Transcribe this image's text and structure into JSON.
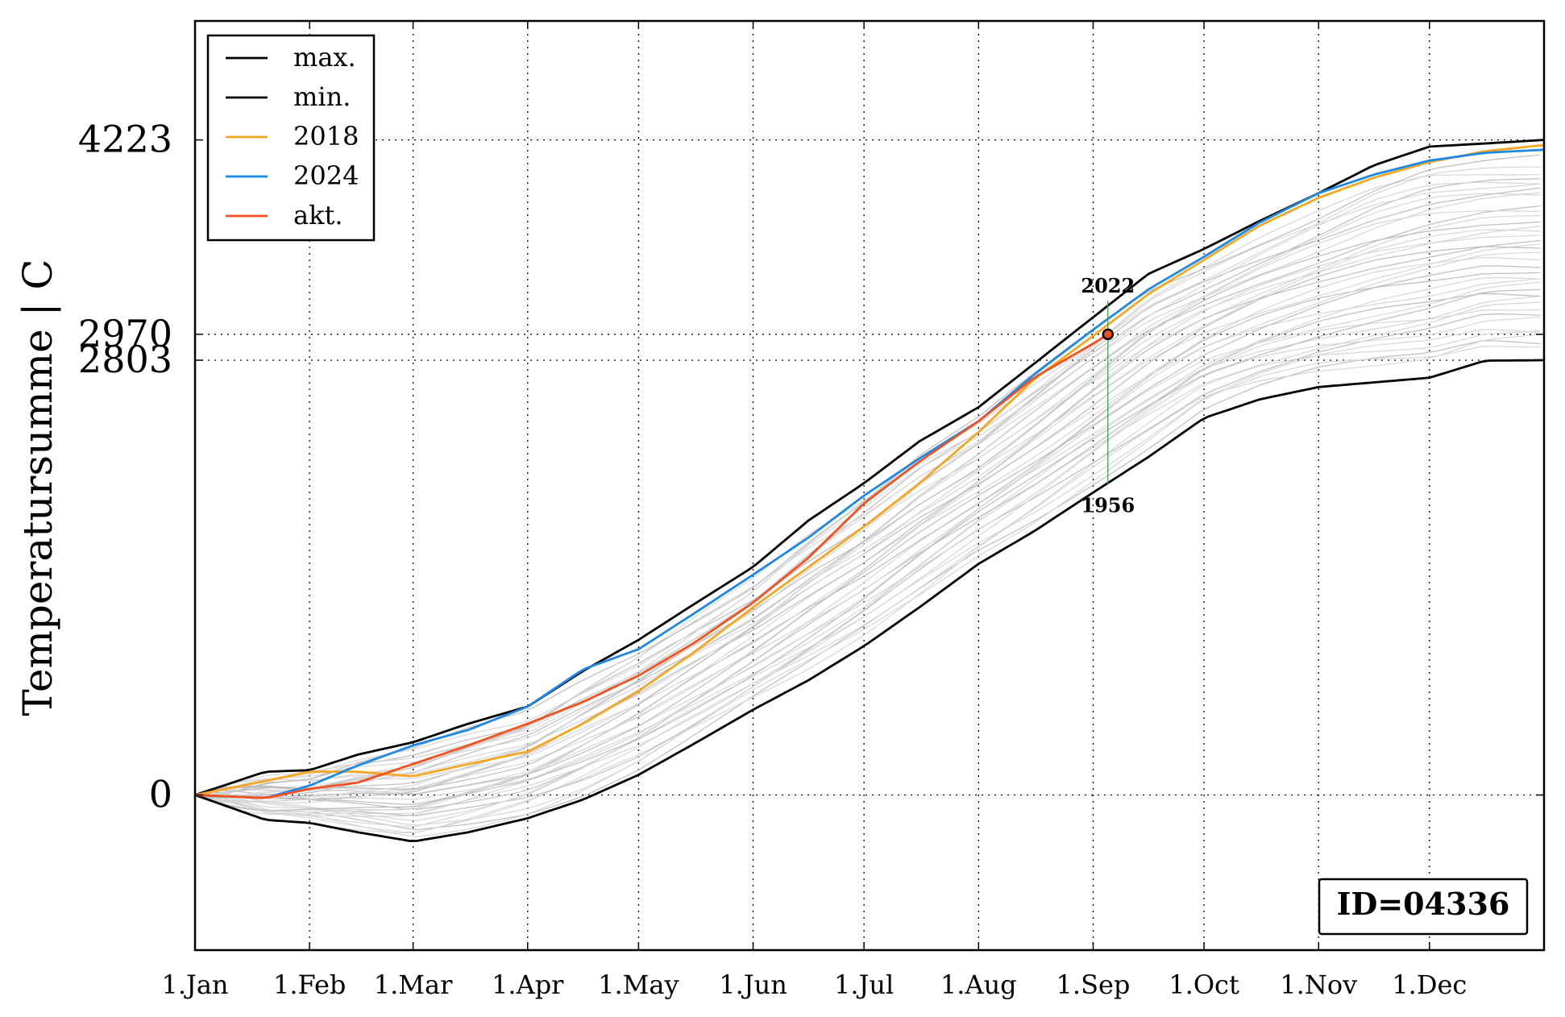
{
  "chart_data": {
    "type": "line",
    "title": "",
    "xlabel": "",
    "ylabel": "Temperatursumme | C",
    "x_tick_labels": [
      "1.Jan",
      "1.Feb",
      "1.Mar",
      "1.Apr",
      "1.May",
      "1.Jun",
      "1.Jul",
      "1.Aug",
      "1.Sep",
      "1.Oct",
      "1.Nov",
      "1.Dec"
    ],
    "x_tick_days": [
      1,
      32,
      60,
      91,
      121,
      152,
      182,
      213,
      244,
      274,
      305,
      335
    ],
    "xlim": [
      1,
      366
    ],
    "ylim": [
      -1000,
      4990
    ],
    "y_ticks": [
      0,
      2803,
      2970,
      4223
    ],
    "y_tick_labels": [
      "0",
      "2803",
      "2970",
      "4223"
    ],
    "grid": true,
    "legend_position": "top-left",
    "series": [
      {
        "name": "max.",
        "color": "#000000",
        "x": [
          1,
          20,
          32,
          45,
          60,
          75,
          91,
          106,
          121,
          136,
          152,
          167,
          182,
          197,
          213,
          228,
          244,
          259,
          274,
          289,
          305,
          320,
          335,
          350,
          366
        ],
        "y": [
          0,
          150,
          160,
          260,
          340,
          460,
          570,
          800,
          1000,
          1230,
          1470,
          1770,
          2010,
          2280,
          2500,
          2780,
          3080,
          3360,
          3520,
          3700,
          3880,
          4060,
          4180,
          4200,
          4223
        ]
      },
      {
        "name": "min.",
        "color": "#000000",
        "x": [
          1,
          20,
          32,
          45,
          60,
          75,
          91,
          106,
          121,
          136,
          152,
          167,
          182,
          197,
          213,
          228,
          244,
          259,
          274,
          289,
          305,
          320,
          335,
          350,
          366
        ],
        "y": [
          0,
          -160,
          -180,
          -240,
          -300,
          -240,
          -150,
          -30,
          130,
          330,
          550,
          740,
          960,
          1210,
          1490,
          1700,
          1950,
          2180,
          2430,
          2550,
          2630,
          2660,
          2690,
          2800,
          2803
        ]
      },
      {
        "name": "2018",
        "color": "#f5a623",
        "x": [
          1,
          20,
          32,
          45,
          60,
          75,
          91,
          106,
          121,
          136,
          152,
          167,
          182,
          197,
          213,
          228,
          244,
          259,
          274,
          289,
          305,
          320,
          335,
          350,
          366
        ],
        "y": [
          0,
          90,
          150,
          150,
          120,
          200,
          280,
          460,
          670,
          920,
          1210,
          1470,
          1730,
          2010,
          2340,
          2680,
          2960,
          3230,
          3450,
          3670,
          3850,
          3980,
          4080,
          4150,
          4190
        ]
      },
      {
        "name": "2024",
        "color": "#1e88e5",
        "x": [
          1,
          20,
          32,
          45,
          60,
          75,
          91,
          106,
          121,
          136,
          152,
          167,
          182,
          197,
          213,
          228,
          244,
          259,
          274,
          289,
          305,
          320,
          335,
          350,
          366
        ],
        "y": [
          0,
          -20,
          60,
          190,
          320,
          420,
          570,
          810,
          940,
          1170,
          1420,
          1660,
          1930,
          2170,
          2410,
          2710,
          3000,
          3260,
          3470,
          3690,
          3880,
          4000,
          4090,
          4140,
          4160
        ]
      },
      {
        "name": "akt.",
        "color": "#f4511e",
        "x": [
          1,
          20,
          32,
          45,
          60,
          75,
          91,
          106,
          121,
          136,
          152,
          167,
          182,
          197,
          213,
          228,
          244,
          248
        ],
        "y": [
          0,
          -20,
          40,
          80,
          200,
          320,
          460,
          600,
          770,
          980,
          1240,
          1530,
          1880,
          2150,
          2410,
          2690,
          2910,
          2970
        ]
      }
    ],
    "annotations": [
      {
        "text": "2022",
        "x": 248,
        "y": 3238
      },
      {
        "text": "1956",
        "x": 248,
        "y": 1948
      },
      {
        "text": "ID=04336",
        "position": "bottom-right"
      }
    ],
    "highlight_point": {
      "x": 248,
      "y": 2970
    }
  }
}
